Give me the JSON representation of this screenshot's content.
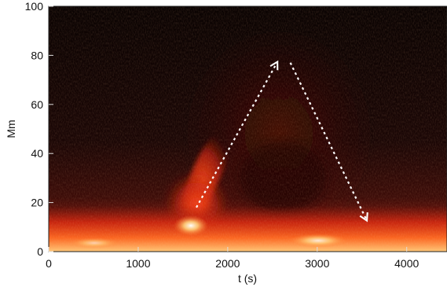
{
  "chart_data": {
    "type": "heatmap",
    "title": "",
    "xlabel": "t (s)",
    "ylabel": "Mm",
    "xlim": [
      0,
      4450
    ],
    "ylim": [
      0,
      100
    ],
    "x_ticks": [
      0,
      1000,
      2000,
      3000,
      4000
    ],
    "y_ticks": [
      0,
      20,
      40,
      60,
      80,
      100
    ],
    "x_tick_labels": [
      "0",
      "1000",
      "2000",
      "3000",
      "4000"
    ],
    "y_tick_labels": [
      "0",
      "20",
      "40",
      "60",
      "80",
      "100"
    ],
    "colormap": [
      "#000000",
      "#3a0a06",
      "#8a1a0c",
      "#d8260e",
      "#ff7a2a",
      "#ffd27a",
      "#ffffff"
    ],
    "annotations": [
      {
        "type": "dashed-arrow",
        "color": "#ffffff",
        "from": [
          1650,
          18
        ],
        "to": [
          2550,
          77
        ]
      },
      {
        "type": "dashed-arrow",
        "color": "#ffffff",
        "from": [
          2700,
          77
        ],
        "to": [
          3550,
          13
        ]
      }
    ]
  }
}
